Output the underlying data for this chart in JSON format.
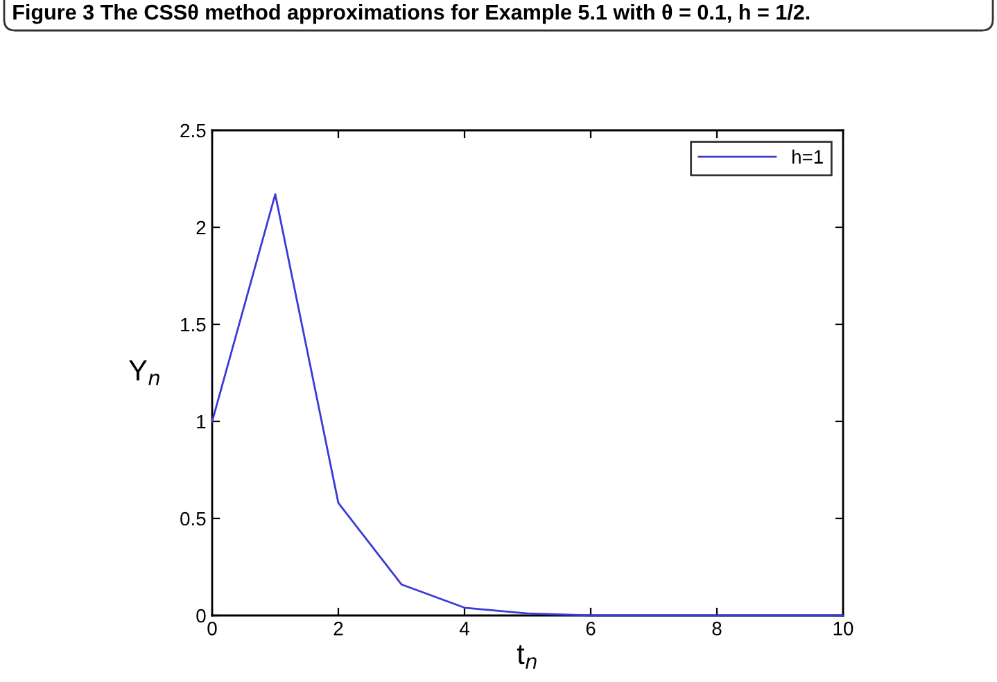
{
  "chart_data": {
    "type": "line",
    "xlabel": "t$_{n}$",
    "ylabel": "Y$_{n}$",
    "annotations": [
      "Figure 3 The CSSθ method approximations for Example 5.1 with θ = 0.1, h = 1/2."
    ],
    "x": [
      0,
      1,
      2,
      3,
      4,
      5,
      6,
      7,
      8,
      9,
      10
    ],
    "series": [
      {
        "name": "h=1",
        "color": "#3a3ad8",
        "values": [
          1.0,
          2.17,
          0.58,
          0.16,
          0.04,
          0.01,
          0.0,
          0.0,
          0.0,
          0.0,
          0.0
        ]
      }
    ],
    "xlim": [
      0,
      10
    ],
    "ylim": [
      0,
      2.5
    ],
    "xticks": [
      0,
      2,
      4,
      6,
      8,
      10
    ],
    "yticks": [
      0,
      0.5,
      1,
      1.5,
      2,
      2.5
    ],
    "grid": false,
    "legend": "top right",
    "marker": "none",
    "line_style": "solid"
  }
}
